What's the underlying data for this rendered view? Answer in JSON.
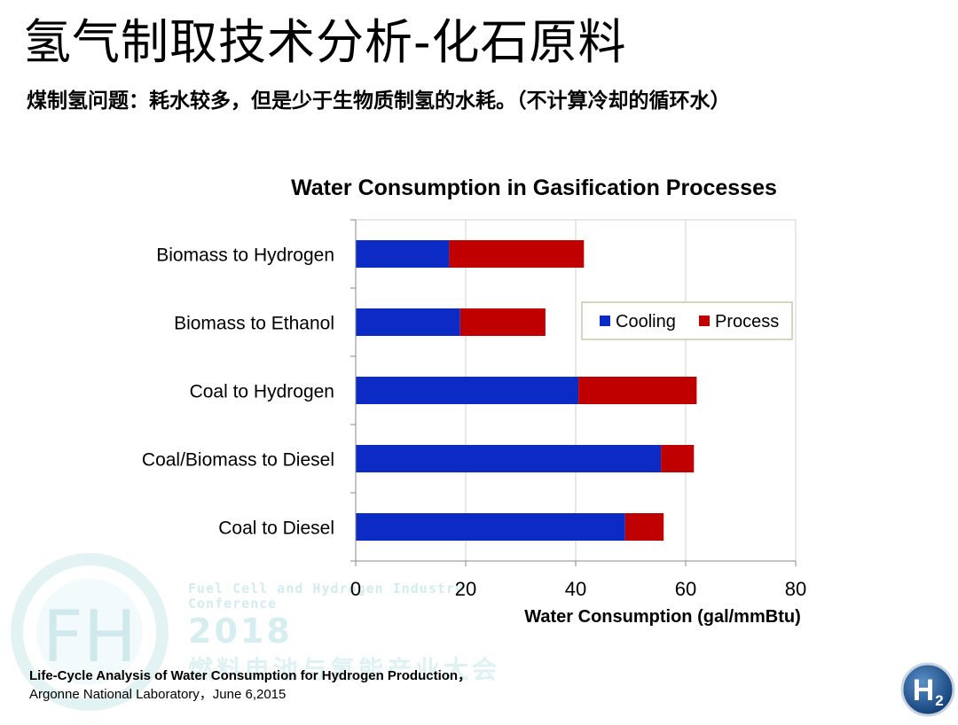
{
  "slide": {
    "title": "氢气制取技术分析-化石原料",
    "subtitle": "煤制氢问题：耗水较多，但是少于生物质制氢的水耗。（不计算冷却的循环水）"
  },
  "watermark": {
    "line1": "Fuel Cell and Hydrogen Industry",
    "line2": "Conference",
    "year": "2018",
    "cn": "燃料电池与氢能产业大会",
    "logo_text": "FH"
  },
  "source": {
    "line1": "Life-Cycle Analysis of Water Consumption for Hydrogen Production，",
    "line2": "Argonne National Laboratory，June 6,2015"
  },
  "badge": {
    "text": "H",
    "sub": "2"
  },
  "colors": {
    "cooling": "#0b2bc4",
    "process": "#c00000",
    "legend_border": "#c9c9a8",
    "grid": "#d0d0d0"
  },
  "chart_data": {
    "type": "bar",
    "orientation": "horizontal",
    "stacked": true,
    "title": "Water Consumption in Gasification Processes",
    "xlabel": "Water Consumption (gal/mmBtu)",
    "ylabel": "",
    "xlim": [
      0,
      80
    ],
    "xticks": [
      "0",
      "20",
      "40",
      "60",
      "80"
    ],
    "grid": true,
    "legend_position": "right",
    "categories": [
      "Biomass to Hydrogen",
      "Biomass to Ethanol",
      "Coal to Hydrogen",
      "Coal/Biomass to Diesel",
      "Coal to Diesel"
    ],
    "series": [
      {
        "name": "Cooling",
        "color": "#0b2bc4",
        "values": [
          17,
          19,
          40.5,
          55.5,
          49
        ]
      },
      {
        "name": "Process",
        "color": "#c00000",
        "values": [
          24.5,
          15.5,
          21.5,
          6,
          7
        ]
      }
    ]
  }
}
